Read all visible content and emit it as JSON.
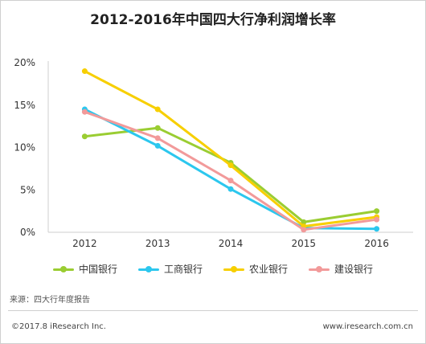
{
  "chart_data": {
    "type": "line",
    "title": "2012-2016年中国四大行净利润增长率",
    "categories": [
      "2012",
      "2013",
      "2014",
      "2015",
      "2016"
    ],
    "ylim": [
      0,
      20
    ],
    "yticks": [
      0,
      5,
      10,
      15,
      20
    ],
    "ytick_labels": [
      "0%",
      "5%",
      "10%",
      "15%",
      "20%"
    ],
    "grid": false,
    "legend_position": "bottom",
    "series": [
      {
        "name": "中国银行",
        "color": "#9acd32",
        "values": [
          11.3,
          12.3,
          8.2,
          1.2,
          2.5
        ]
      },
      {
        "name": "工商银行",
        "color": "#2cc7ee",
        "values": [
          14.5,
          10.2,
          5.1,
          0.5,
          0.4
        ]
      },
      {
        "name": "农业银行",
        "color": "#f7cf00",
        "values": [
          19.0,
          14.5,
          7.9,
          0.7,
          1.8
        ]
      },
      {
        "name": "建设银行",
        "color": "#f29a9a",
        "values": [
          14.2,
          11.1,
          6.1,
          0.3,
          1.5
        ]
      }
    ]
  },
  "source": "来源：四大行年度报告",
  "footer": {
    "copyright": "©2017.8 iResearch Inc.",
    "website": "www.iresearch.com.cn"
  }
}
